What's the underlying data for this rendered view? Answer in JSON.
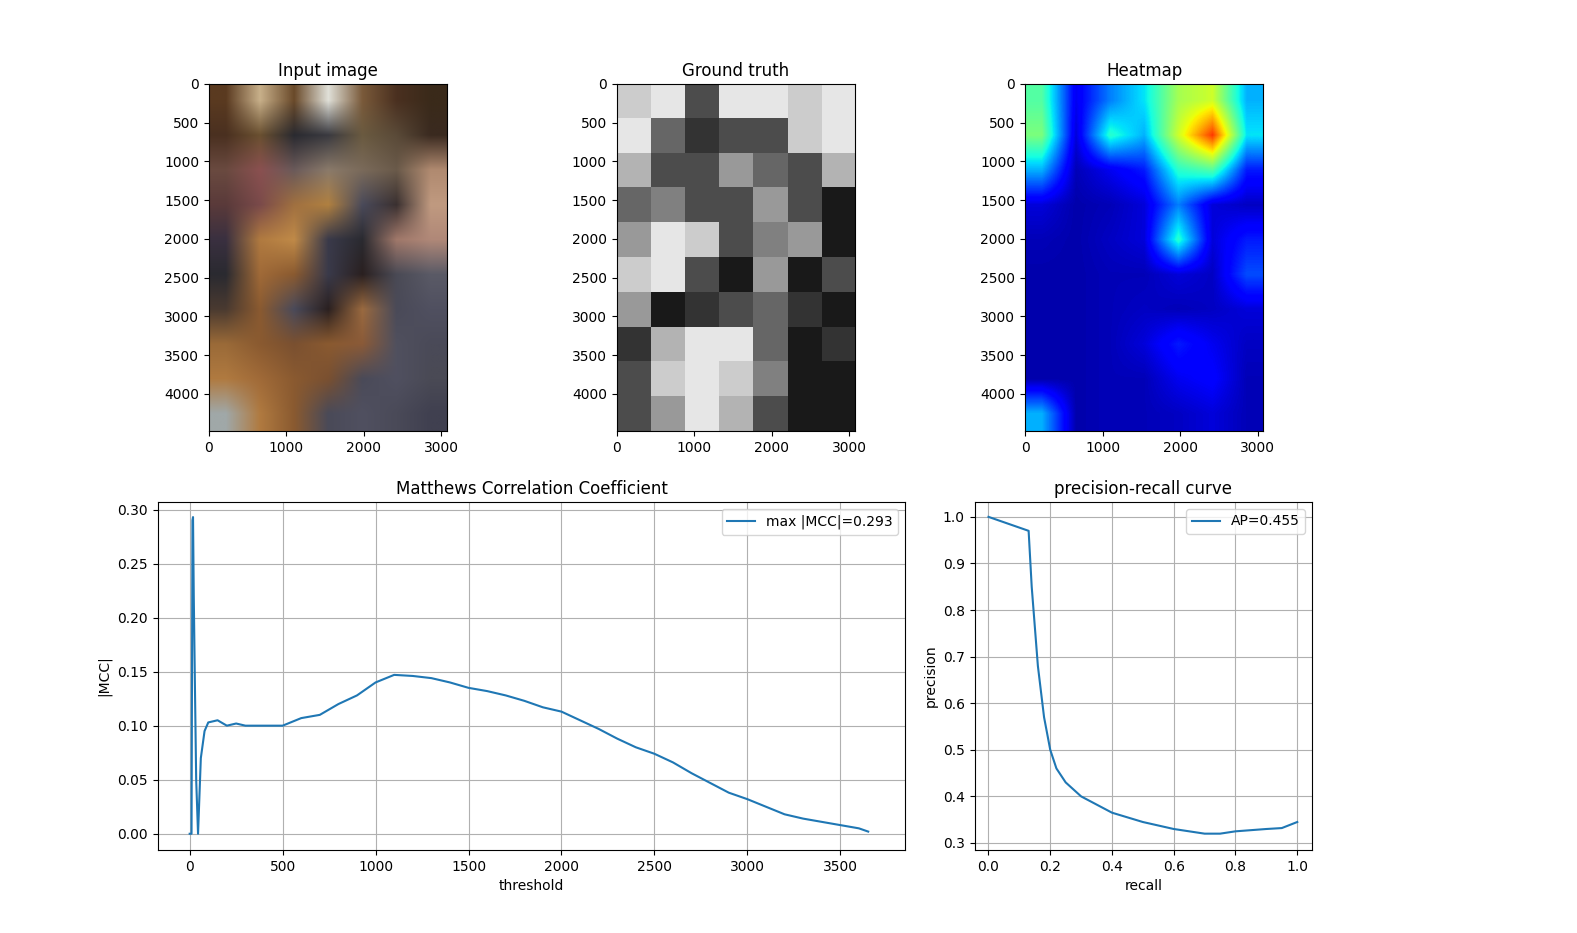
{
  "chart_data": [
    {
      "type": "image",
      "title": "Input image",
      "xlim": [
        0,
        3072
      ],
      "ylim": [
        4480,
        0
      ],
      "xticks": [
        0,
        1000,
        2000,
        3000
      ],
      "yticks": [
        0,
        500,
        1000,
        1500,
        2000,
        2500,
        3000,
        3500,
        4000
      ],
      "cells": [
        [
          "#5a3a20",
          "#c8b08a",
          "#6a4a2a",
          "#e0e0d8",
          "#7a5a3a",
          "#4a3020",
          "#3a2a1a"
        ],
        [
          "#4a3020",
          "#6a5030",
          "#2a2a30",
          "#3a3a40",
          "#6a5a40",
          "#5a4a38",
          "#3a2a20"
        ],
        [
          "#6a4a40",
          "#8a5050",
          "#6a5a5a",
          "#8a7a6a",
          "#7a6a5a",
          "#6a5a4a",
          "#b08a70"
        ],
        [
          "#5a3a3a",
          "#7a4a4a",
          "#a07040",
          "#b08040",
          "#4a4a5a",
          "#3a3030",
          "#c09a80"
        ],
        [
          "#3a3040",
          "#b07a40",
          "#c08a48",
          "#3a3a4a",
          "#2a2a30",
          "#a0786a",
          "#b08878"
        ],
        [
          "#2a2a30",
          "#a06a38",
          "#8a5a30",
          "#3a3a4a",
          "#2a2020",
          "#4a4a55",
          "#5a5a66"
        ],
        [
          "#4a3a30",
          "#8a5a30",
          "#4a4a5a",
          "#2a2020",
          "#9a6a40",
          "#4a4a58",
          "#505060"
        ],
        [
          "#9a6a38",
          "#8a5a30",
          "#7a5030",
          "#8a5a30",
          "#8a5a38",
          "#50505e",
          "#4a4a58"
        ],
        [
          "#b07a40",
          "#a06a38",
          "#8a5a30",
          "#7a5030",
          "#4a4a58",
          "#505060",
          "#4a4a55"
        ],
        [
          "#a0a8a8",
          "#b07a40",
          "#8a5a30",
          "#4a4a58",
          "#505060",
          "#4a4a58",
          "#404050"
        ]
      ]
    },
    {
      "type": "image",
      "title": "Ground truth",
      "xlim": [
        0,
        3072
      ],
      "ylim": [
        4480,
        0
      ],
      "xticks": [
        0,
        1000,
        2000,
        3000
      ],
      "yticks": [
        0,
        500,
        1000,
        1500,
        2000,
        2500,
        3000,
        3500,
        4000
      ],
      "range": [
        0,
        1
      ],
      "cells": [
        [
          0.8,
          0.9,
          0.3,
          0.9,
          0.9,
          0.8,
          0.9
        ],
        [
          0.9,
          0.4,
          0.2,
          0.3,
          0.3,
          0.8,
          0.9
        ],
        [
          0.7,
          0.3,
          0.3,
          0.6,
          0.4,
          0.3,
          0.7
        ],
        [
          0.4,
          0.5,
          0.3,
          0.3,
          0.6,
          0.3,
          0.1
        ],
        [
          0.6,
          0.9,
          0.8,
          0.3,
          0.5,
          0.6,
          0.1
        ],
        [
          0.8,
          0.9,
          0.3,
          0.1,
          0.6,
          0.1,
          0.3
        ],
        [
          0.6,
          0.1,
          0.2,
          0.3,
          0.4,
          0.2,
          0.1
        ],
        [
          0.2,
          0.7,
          0.9,
          0.9,
          0.4,
          0.1,
          0.2
        ],
        [
          0.3,
          0.8,
          0.9,
          0.8,
          0.5,
          0.1,
          0.1
        ],
        [
          0.3,
          0.6,
          0.9,
          0.7,
          0.3,
          0.1,
          0.1
        ]
      ]
    },
    {
      "type": "heatmap",
      "title": "Heatmap",
      "xlim": [
        0,
        3072
      ],
      "ylim": [
        4480,
        0
      ],
      "xticks": [
        0,
        1000,
        2000,
        3000
      ],
      "yticks": [
        0,
        500,
        1000,
        1500,
        2000,
        2500,
        3000,
        3500,
        4000
      ],
      "range": [
        0,
        1
      ],
      "cells": [
        [
          0.45,
          0.1,
          0.25,
          0.35,
          0.55,
          0.6,
          0.3
        ],
        [
          0.5,
          0.08,
          0.4,
          0.3,
          0.6,
          0.85,
          0.35
        ],
        [
          0.3,
          0.05,
          0.1,
          0.15,
          0.4,
          0.45,
          0.15
        ],
        [
          0.08,
          0.04,
          0.05,
          0.08,
          0.25,
          0.08,
          0.06
        ],
        [
          0.05,
          0.04,
          0.06,
          0.08,
          0.4,
          0.08,
          0.15
        ],
        [
          0.04,
          0.04,
          0.05,
          0.05,
          0.08,
          0.06,
          0.2
        ],
        [
          0.04,
          0.04,
          0.05,
          0.06,
          0.05,
          0.06,
          0.08
        ],
        [
          0.04,
          0.04,
          0.05,
          0.08,
          0.15,
          0.1,
          0.06
        ],
        [
          0.04,
          0.04,
          0.05,
          0.05,
          0.1,
          0.12,
          0.05
        ],
        [
          0.3,
          0.04,
          0.05,
          0.05,
          0.06,
          0.08,
          0.05
        ]
      ]
    },
    {
      "type": "line",
      "title": "Matthews Correlation Coefficient",
      "x_label": "threshold",
      "y_label": "|MCC|",
      "xlim": [
        -172,
        3849
      ],
      "ylim": [
        -0.015,
        0.307
      ],
      "xticks": [
        0,
        500,
        1000,
        1500,
        2000,
        2500,
        3000,
        3500
      ],
      "yticks": [
        {
          "value": 0.0,
          "label": "0.00"
        },
        {
          "value": 0.05,
          "label": "0.05"
        },
        {
          "value": 0.1,
          "label": "0.10"
        },
        {
          "value": 0.15,
          "label": "0.15"
        },
        {
          "value": 0.2,
          "label": "0.20"
        },
        {
          "value": 0.25,
          "label": "0.25"
        },
        {
          "value": 0.3,
          "label": "0.30"
        }
      ],
      "grid": true,
      "legend": "upper right",
      "x": [
        0,
        10,
        15,
        18,
        22,
        28,
        35,
        45,
        60,
        80,
        100,
        150,
        200,
        250,
        300,
        400,
        500,
        600,
        700,
        800,
        900,
        1000,
        1100,
        1200,
        1300,
        1400,
        1500,
        1600,
        1700,
        1800,
        1900,
        2000,
        2100,
        2200,
        2300,
        2400,
        2500,
        2600,
        2700,
        2800,
        2900,
        3000,
        3100,
        3200,
        3300,
        3400,
        3500,
        3600,
        3650
      ],
      "series": [
        {
          "name": "max |MCC|=0.293",
          "color": "#1f77b4",
          "values": [
            0,
            0,
            0.29,
            0.293,
            0.22,
            0.14,
            0.05,
            0,
            0.07,
            0.095,
            0.103,
            0.105,
            0.1,
            0.102,
            0.1,
            0.1,
            0.1,
            0.107,
            0.11,
            0.12,
            0.128,
            0.14,
            0.147,
            0.146,
            0.144,
            0.14,
            0.135,
            0.132,
            0.128,
            0.123,
            0.117,
            0.113,
            0.105,
            0.097,
            0.088,
            0.08,
            0.074,
            0.066,
            0.056,
            0.047,
            0.038,
            0.032,
            0.025,
            0.018,
            0.014,
            0.011,
            0.008,
            0.005,
            0.002
          ]
        }
      ]
    },
    {
      "type": "line",
      "title": "precision-recall curve",
      "x_label": "recall",
      "y_label": "precision",
      "xlim": [
        -0.045,
        1.048
      ],
      "ylim": [
        0.285,
        1.032
      ],
      "xticks": [
        {
          "value": 0.0,
          "label": "0.0"
        },
        {
          "value": 0.2,
          "label": "0.2"
        },
        {
          "value": 0.4,
          "label": "0.4"
        },
        {
          "value": 0.6,
          "label": "0.6"
        },
        {
          "value": 0.8,
          "label": "0.8"
        },
        {
          "value": 1.0,
          "label": "1.0"
        }
      ],
      "yticks": [
        {
          "value": 0.3,
          "label": "0.3"
        },
        {
          "value": 0.4,
          "label": "0.4"
        },
        {
          "value": 0.5,
          "label": "0.5"
        },
        {
          "value": 0.6,
          "label": "0.6"
        },
        {
          "value": 0.7,
          "label": "0.7"
        },
        {
          "value": 0.8,
          "label": "0.8"
        },
        {
          "value": 0.9,
          "label": "0.9"
        },
        {
          "value": 1.0,
          "label": "1.0"
        }
      ],
      "grid": true,
      "legend": "upper right",
      "x": [
        0.0,
        0.13,
        0.14,
        0.16,
        0.18,
        0.2,
        0.22,
        0.25,
        0.3,
        0.4,
        0.5,
        0.6,
        0.7,
        0.75,
        0.8,
        0.9,
        0.95,
        1.0
      ],
      "series": [
        {
          "name": "AP=0.455",
          "color": "#1f77b4",
          "values": [
            1.0,
            0.97,
            0.85,
            0.68,
            0.57,
            0.5,
            0.46,
            0.43,
            0.4,
            0.365,
            0.345,
            0.33,
            0.32,
            0.32,
            0.325,
            0.33,
            0.332,
            0.345
          ]
        }
      ]
    }
  ]
}
